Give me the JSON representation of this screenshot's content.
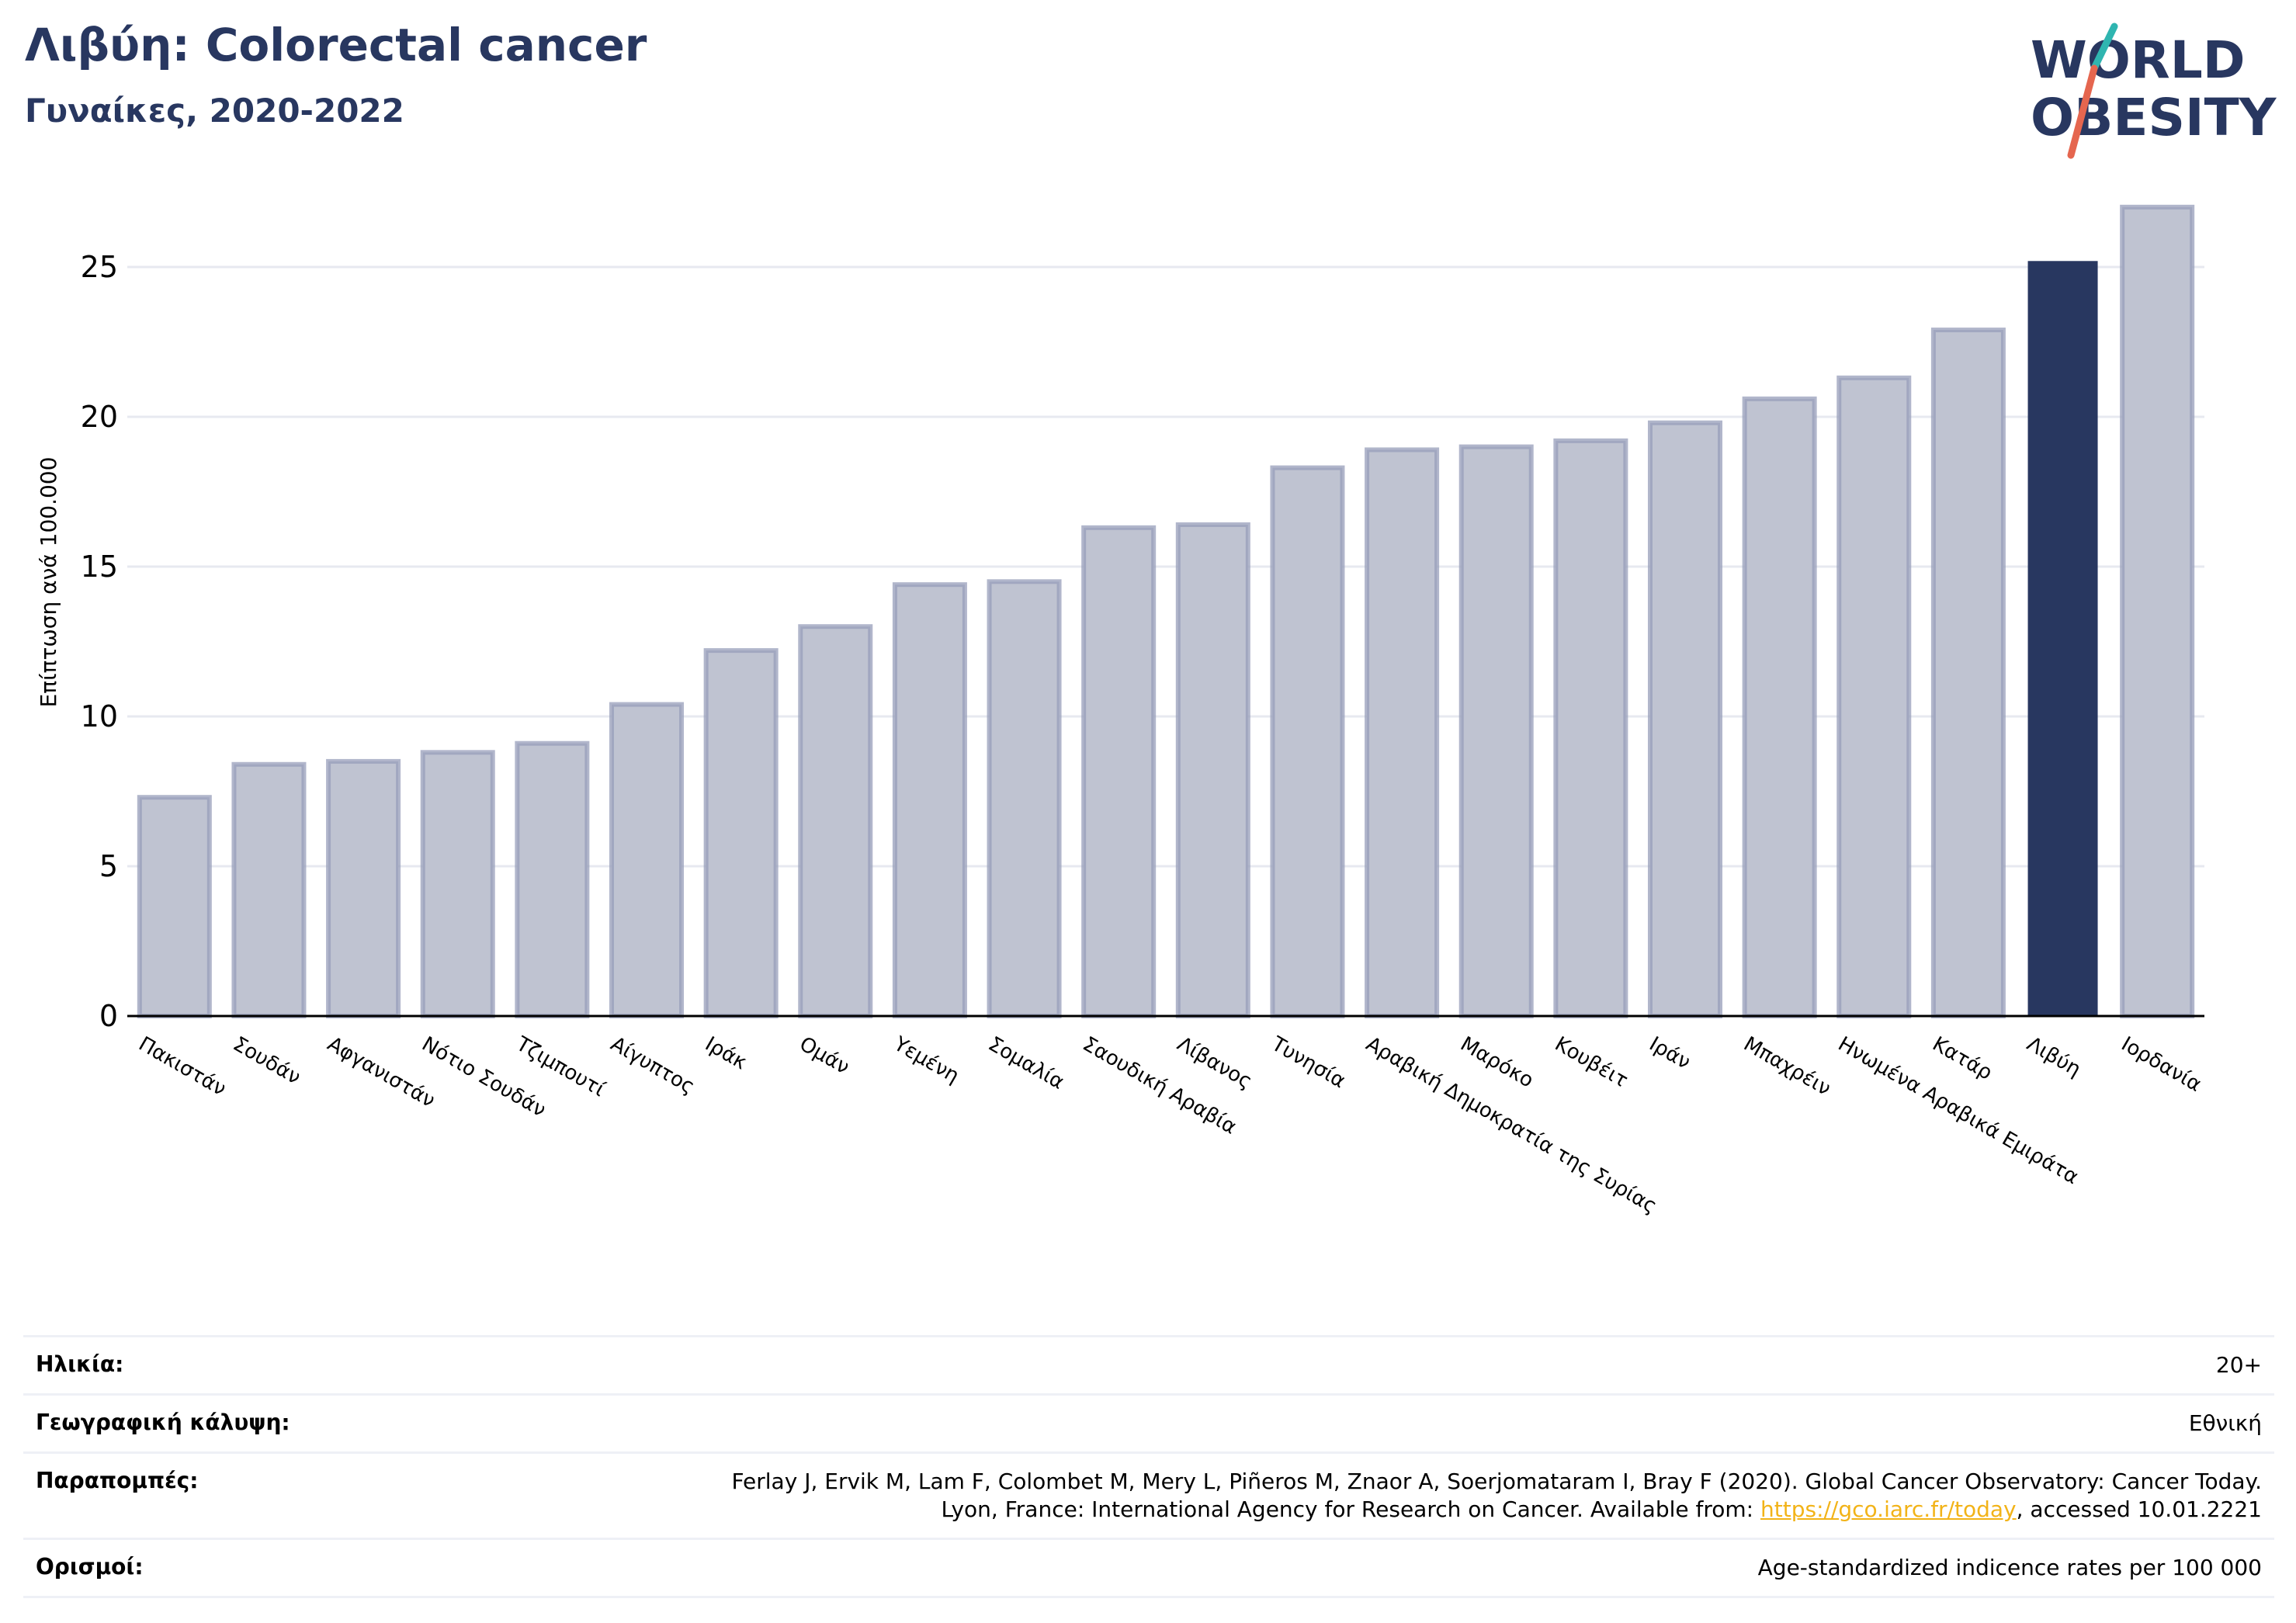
{
  "header": {
    "title": "Λιβύη: Colorectal cancer",
    "subtitle": "Γυναίκες, 2020-2022"
  },
  "logo": {
    "line1": "WORLD",
    "line2": "OBESITY",
    "colors": {
      "text": "#283760",
      "slash_top": "#2fb5b0",
      "slash_bottom": "#e5664f"
    }
  },
  "chart_data": {
    "type": "bar",
    "title": "Λιβύη: Colorectal cancer",
    "subtitle": "Γυναίκες, 2020-2022",
    "xlabel": "",
    "ylabel": "Επίπτωση ανά 100.000",
    "ylim": [
      0,
      27.5
    ],
    "yticks": [
      0,
      5,
      10,
      15,
      20,
      25
    ],
    "grid": true,
    "categories": [
      "Πακιστάν",
      "Σουδάν",
      "Αφγανιστάν",
      "Νότιο Σουδάν",
      "Τζιμπουτί",
      "Αίγυπτος",
      "Ιράκ",
      "Ομάν",
      "Υεμένη",
      "Σομαλία",
      "Σαουδική Αραβία",
      "Λίβανος",
      "Τυνησία",
      "Αραβική Δημοκρατία της Συρίας",
      "Μαρόκο",
      "Κουβέιτ",
      "Ιράν",
      "Μπαχρέιν",
      "Ηνωμένα Αραβικά Εμιράτα",
      "Κατάρ",
      "Λιβύη",
      "Ιορδανία"
    ],
    "values": [
      7.3,
      8.4,
      8.5,
      8.8,
      9.1,
      10.4,
      12.2,
      13.0,
      14.4,
      14.5,
      16.3,
      16.4,
      18.3,
      18.9,
      19.0,
      19.2,
      19.8,
      20.6,
      21.3,
      22.9,
      25.2,
      27.0
    ],
    "highlight": "Λιβύη",
    "colors": {
      "bar_fill": "#bfc3d1",
      "bar_border": "#979dba",
      "highlight_fill": "#283760",
      "grid": "#e7e9f0",
      "axis": "#000000"
    }
  },
  "info": {
    "age_label": "Ηλικία:",
    "age_value": "20+",
    "coverage_label": "Γεωγραφική κάλυψη:",
    "coverage_value": "Εθνική",
    "refs_label": "Παραπομπές:",
    "refs_line1": "Ferlay J, Ervik M, Lam F, Colombet M, Mery L, Piñeros M, Znaor A, Soerjomataram I, Bray F (2020). Global Cancer Observatory: Cancer Today.",
    "refs_line2_prefix": "Lyon, France: International Agency for Research on Cancer. Available from: ",
    "refs_link": "https://gco.iarc.fr/today",
    "refs_line2_suffix": ", accessed 10.01.2221",
    "definitions_label": "Ορισμοί:",
    "definitions_value": "Age-standardized indicence rates per 100 000"
  }
}
